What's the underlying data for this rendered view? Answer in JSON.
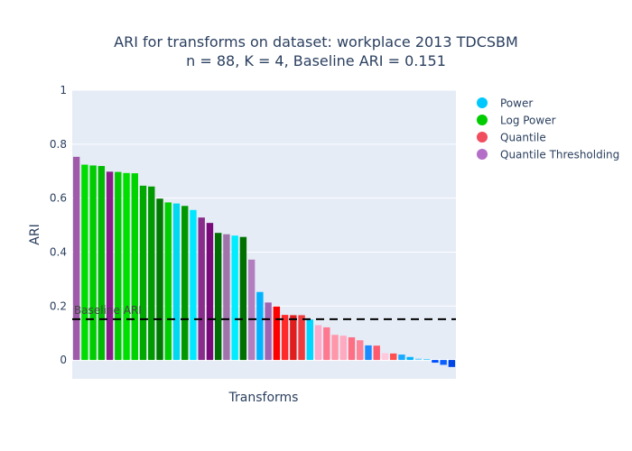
{
  "chart_data": {
    "type": "bar",
    "title": "ARI for transforms on dataset: workplace 2013 TDCSBM",
    "subtitle": "n = 88, K = 4, Baseline ARI = 0.151",
    "xlabel": "Transforms",
    "ylabel": "ARI",
    "ylim": [
      -0.07,
      1.0
    ],
    "yticks": [
      0,
      0.2,
      0.4,
      0.6,
      0.8,
      1
    ],
    "ytick_labels": [
      "0",
      "0.2",
      "0.4",
      "0.6",
      "0.8",
      "1"
    ],
    "grid": true,
    "legend_position": "top-right",
    "baseline": {
      "value": 0.151,
      "label": "Baseline ARI",
      "color": "#000000"
    },
    "series": [
      {
        "name": "Power",
        "legend_color": "#00c8ff"
      },
      {
        "name": "Log Power",
        "legend_color": "#00cc00"
      },
      {
        "name": "Quantile",
        "legend_color": "#f24d5f"
      },
      {
        "name": "Quantile Thresholding",
        "legend_color": "#b46ec8"
      }
    ],
    "bars": [
      {
        "value": 0.753,
        "color": "#a05aaa"
      },
      {
        "value": 0.724,
        "color": "#00dd00"
      },
      {
        "value": 0.721,
        "color": "#00cc00"
      },
      {
        "value": 0.719,
        "color": "#00bb00"
      },
      {
        "value": 0.698,
        "color": "#8c1e8c"
      },
      {
        "value": 0.697,
        "color": "#00cc00"
      },
      {
        "value": 0.693,
        "color": "#00e000"
      },
      {
        "value": 0.692,
        "color": "#00d400"
      },
      {
        "value": 0.646,
        "color": "#00a800"
      },
      {
        "value": 0.643,
        "color": "#009900"
      },
      {
        "value": 0.598,
        "color": "#007a00"
      },
      {
        "value": 0.584,
        "color": "#00d000"
      },
      {
        "value": 0.58,
        "color": "#00d8f0"
      },
      {
        "value": 0.571,
        "color": "#009800"
      },
      {
        "value": 0.556,
        "color": "#00e8ff"
      },
      {
        "value": 0.528,
        "color": "#8a2d8a"
      },
      {
        "value": 0.508,
        "color": "#7a0a7a"
      },
      {
        "value": 0.471,
        "color": "#006e00"
      },
      {
        "value": 0.466,
        "color": "#a073aa"
      },
      {
        "value": 0.461,
        "color": "#00ecff"
      },
      {
        "value": 0.456,
        "color": "#007000"
      },
      {
        "value": 0.372,
        "color": "#b37ec0"
      },
      {
        "value": 0.252,
        "color": "#00b4ff"
      },
      {
        "value": 0.213,
        "color": "#a064b4"
      },
      {
        "value": 0.198,
        "color": "#ff0000"
      },
      {
        "value": 0.167,
        "color": "#ff2a2a"
      },
      {
        "value": 0.166,
        "color": "#e01e1e"
      },
      {
        "value": 0.166,
        "color": "#f03c3c"
      },
      {
        "value": 0.15,
        "color": "#00d8ff"
      },
      {
        "value": 0.129,
        "color": "#ffaac8"
      },
      {
        "value": 0.121,
        "color": "#ff7890"
      },
      {
        "value": 0.093,
        "color": "#ff96aa"
      },
      {
        "value": 0.09,
        "color": "#ffaac0"
      },
      {
        "value": 0.084,
        "color": "#ff6e82"
      },
      {
        "value": 0.073,
        "color": "#ff8296"
      },
      {
        "value": 0.054,
        "color": "#1a8cff"
      },
      {
        "value": 0.053,
        "color": "#ff5a6e"
      },
      {
        "value": 0.025,
        "color": "#ffc8dc"
      },
      {
        "value": 0.024,
        "color": "#ff5050"
      },
      {
        "value": 0.02,
        "color": "#1aaaff"
      },
      {
        "value": 0.011,
        "color": "#00b4ff"
      },
      {
        "value": 0.005,
        "color": "#78d2ff"
      },
      {
        "value": 0.003,
        "color": "#46c8ff"
      },
      {
        "value": -0.01,
        "color": "#0050ff"
      },
      {
        "value": -0.018,
        "color": "#0a60ff"
      },
      {
        "value": -0.026,
        "color": "#0046e6"
      }
    ]
  }
}
